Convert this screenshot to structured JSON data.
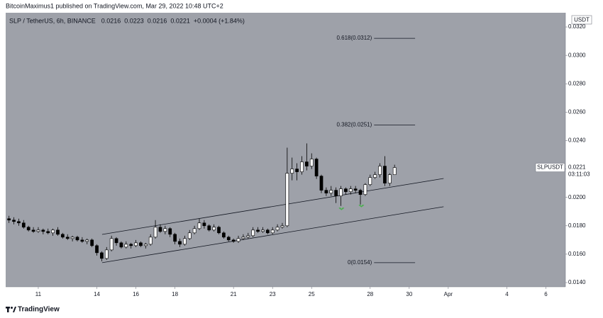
{
  "header": {
    "publisher": "BitcoinMaximus1 published on TradingView.com, Mar 29, 2022 10:48 UTC+2"
  },
  "footer": {
    "brand": "TradingView"
  },
  "chart_data": {
    "type": "candlestick",
    "legend": {
      "symbol": "SLP / TetherUS, 6h, BINANCE",
      "open": "0.0216",
      "high": "0.0223",
      "low": "0.0216",
      "close": "0.0221",
      "change": "+0.0004 (+1.84%)"
    },
    "currency": "USDT",
    "last_price": {
      "ticker": "SLPUSDT",
      "value": 0.0221,
      "countdown": "03:11:03"
    },
    "x": [
      9.5,
      9.75,
      10,
      10.25,
      10.5,
      10.75,
      11,
      11.25,
      11.5,
      11.75,
      12,
      12.25,
      12.5,
      12.75,
      13,
      13.25,
      13.5,
      13.75,
      14,
      14.25,
      14.5,
      14.75,
      15,
      15.25,
      15.5,
      15.75,
      16,
      16.25,
      16.5,
      16.75,
      17,
      17.25,
      17.5,
      17.75,
      18,
      18.25,
      18.5,
      18.75,
      19,
      19.25,
      19.5,
      19.75,
      20,
      20.25,
      20.5,
      20.75,
      21,
      21.25,
      21.5,
      21.75,
      22,
      22.25,
      22.5,
      22.75,
      23,
      23.25,
      23.5,
      23.75,
      24,
      24.25,
      24.5,
      24.75,
      25,
      25.25,
      25.5,
      25.75,
      26,
      26.25,
      26.5,
      26.75,
      27,
      27.25,
      27.5,
      27.75,
      28,
      28.25,
      28.5,
      28.75,
      29,
      29.25
    ],
    "open": [
      0.0185,
      0.0184,
      0.0183,
      0.0182,
      0.0179,
      0.0177,
      0.0176,
      0.0177,
      0.0176,
      0.0175,
      0.0177,
      0.0174,
      0.0172,
      0.0171,
      0.0172,
      0.017,
      0.0169,
      0.017,
      0.0166,
      0.0161,
      0.0157,
      0.0163,
      0.0171,
      0.0168,
      0.0165,
      0.0167,
      0.0166,
      0.0168,
      0.0166,
      0.0167,
      0.0172,
      0.0179,
      0.0176,
      0.0178,
      0.0174,
      0.0169,
      0.0167,
      0.0171,
      0.0175,
      0.0178,
      0.0182,
      0.018,
      0.0177,
      0.0179,
      0.0175,
      0.0172,
      0.017,
      0.0169,
      0.0171,
      0.0172,
      0.0173,
      0.0177,
      0.0176,
      0.0177,
      0.0175,
      0.0177,
      0.0179,
      0.018,
      0.0217,
      0.022,
      0.0218,
      0.0225,
      0.0222,
      0.0227,
      0.0215,
      0.0205,
      0.0203,
      0.0205,
      0.0201,
      0.0206,
      0.0204,
      0.0206,
      0.0205,
      0.0202,
      0.0209,
      0.0214,
      0.0216,
      0.0222,
      0.021,
      0.0216
    ],
    "high": [
      0.0187,
      0.0186,
      0.0185,
      0.0184,
      0.018,
      0.0179,
      0.0179,
      0.0178,
      0.0178,
      0.0178,
      0.0179,
      0.0175,
      0.0174,
      0.0173,
      0.0173,
      0.0172,
      0.0171,
      0.0171,
      0.0167,
      0.0162,
      0.0165,
      0.0173,
      0.0172,
      0.0169,
      0.0169,
      0.0168,
      0.017,
      0.0169,
      0.0168,
      0.0174,
      0.0184,
      0.0181,
      0.018,
      0.0179,
      0.0175,
      0.0171,
      0.0173,
      0.0177,
      0.018,
      0.0185,
      0.0184,
      0.0181,
      0.0181,
      0.018,
      0.0176,
      0.0173,
      0.0171,
      0.0173,
      0.0174,
      0.0175,
      0.0179,
      0.0179,
      0.0179,
      0.0178,
      0.0179,
      0.0181,
      0.0182,
      0.0235,
      0.0228,
      0.0224,
      0.0229,
      0.0238,
      0.0231,
      0.0228,
      0.0216,
      0.0207,
      0.0208,
      0.0207,
      0.0208,
      0.0207,
      0.0208,
      0.0208,
      0.0206,
      0.021,
      0.0216,
      0.0218,
      0.0224,
      0.0229,
      0.0217,
      0.0223
    ],
    "low": [
      0.0182,
      0.0181,
      0.018,
      0.0178,
      0.0176,
      0.0175,
      0.0175,
      0.0174,
      0.0174,
      0.0173,
      0.0173,
      0.0171,
      0.017,
      0.0169,
      0.0169,
      0.0168,
      0.0167,
      0.0165,
      0.0159,
      0.0155,
      0.0156,
      0.0162,
      0.0166,
      0.0164,
      0.0164,
      0.0164,
      0.0165,
      0.0165,
      0.0164,
      0.0166,
      0.0171,
      0.0175,
      0.0174,
      0.0172,
      0.0167,
      0.0165,
      0.0166,
      0.017,
      0.0174,
      0.0177,
      0.0178,
      0.0176,
      0.0176,
      0.0174,
      0.0171,
      0.0169,
      0.0168,
      0.0168,
      0.017,
      0.0171,
      0.0172,
      0.0175,
      0.0175,
      0.0174,
      0.0174,
      0.0176,
      0.0178,
      0.0179,
      0.0212,
      0.0212,
      0.0216,
      0.0219,
      0.022,
      0.0213,
      0.0203,
      0.0201,
      0.0201,
      0.0196,
      0.0194,
      0.0202,
      0.0202,
      0.0203,
      0.0195,
      0.0201,
      0.0208,
      0.0213,
      0.0214,
      0.0208,
      0.0208,
      0.0216
    ],
    "close": [
      0.0184,
      0.0183,
      0.0182,
      0.0179,
      0.0177,
      0.0176,
      0.0177,
      0.0176,
      0.0175,
      0.0177,
      0.0174,
      0.0172,
      0.0171,
      0.0172,
      0.017,
      0.0169,
      0.017,
      0.0166,
      0.0161,
      0.0157,
      0.0163,
      0.0171,
      0.0168,
      0.0165,
      0.0167,
      0.0166,
      0.0168,
      0.0166,
      0.0167,
      0.0172,
      0.0179,
      0.0176,
      0.0178,
      0.0174,
      0.0169,
      0.0167,
      0.0171,
      0.0175,
      0.0178,
      0.0182,
      0.018,
      0.0177,
      0.0179,
      0.0175,
      0.0172,
      0.017,
      0.0169,
      0.0171,
      0.0172,
      0.0173,
      0.0177,
      0.0176,
      0.0177,
      0.0175,
      0.0177,
      0.0179,
      0.018,
      0.0217,
      0.022,
      0.0218,
      0.0225,
      0.0222,
      0.0227,
      0.0215,
      0.0205,
      0.0203,
      0.0205,
      0.0201,
      0.0206,
      0.0204,
      0.0206,
      0.0205,
      0.0202,
      0.0209,
      0.0214,
      0.0216,
      0.0222,
      0.021,
      0.0216,
      0.0221
    ],
    "up_color": "#ffffff",
    "down_color": "#000000",
    "background": "#9ea1a9",
    "xlim": [
      9.33,
      38.0
    ],
    "xticks": [
      11,
      14,
      16,
      18,
      21,
      23,
      25,
      28,
      30,
      {
        "value": 32,
        "label": "Apr"
      },
      {
        "value": 35,
        "label": "4"
      },
      {
        "value": 37,
        "label": "6"
      }
    ],
    "ylim": [
      0.0137,
      0.033
    ],
    "yticks": [
      {
        "value": 0.014,
        "label": "0.0140"
      },
      {
        "value": 0.016,
        "label": "0.0160"
      },
      {
        "value": 0.018,
        "label": "0.0180"
      },
      {
        "value": 0.02,
        "label": "0.0200"
      },
      {
        "value": 0.022,
        "label": "0.0220"
      },
      {
        "value": 0.024,
        "label": "0.0240"
      },
      {
        "value": 0.026,
        "label": "0.0260"
      },
      {
        "value": 0.028,
        "label": "0.0280"
      },
      {
        "value": 0.03,
        "label": "0.0300"
      },
      {
        "value": 0.032,
        "label": "0.0320"
      }
    ],
    "trend_lines": [
      {
        "x": [
          14.27,
          31.76
        ],
        "y": [
          0.01739,
          0.02133
        ]
      },
      {
        "x": [
          14.27,
          31.76
        ],
        "y": [
          0.0154,
          0.01934
        ]
      }
    ],
    "fib_levels": [
      {
        "label": "0.618(0.0312)",
        "value": 0.0312
      },
      {
        "label": "0.382(0.0251)",
        "value": 0.0251
      },
      {
        "label": "0(0.0154)",
        "value": 0.0154
      }
    ],
    "fib_x": [
      28.2,
      30.3
    ],
    "arrows": {
      "color": "#4caf50",
      "x": [
        26.53,
        27.55
      ],
      "y": [
        0.0192,
        0.0194
      ]
    }
  }
}
